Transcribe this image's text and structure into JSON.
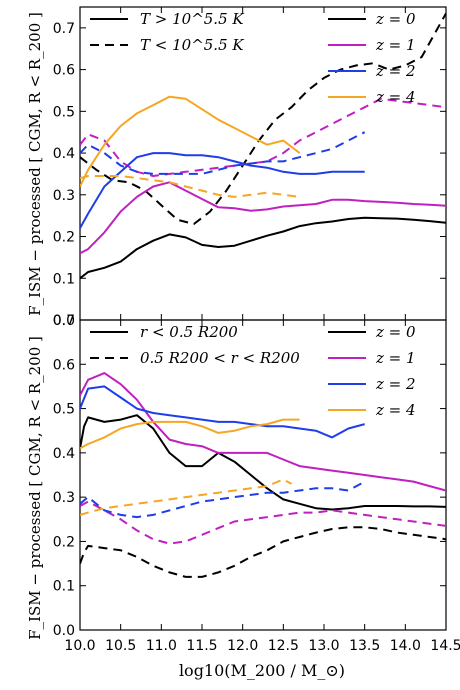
{
  "figure": {
    "ylabel": "F_ISM − processed [ CGM, R < R_200 ]",
    "xlabel": "log10(M_200 / M_⊙)"
  },
  "chart_data": [
    {
      "type": "line",
      "panel": "top",
      "xlim": [
        10.0,
        14.5
      ],
      "ylim": [
        0.0,
        0.75
      ],
      "xticks": [
        "10.0",
        "10.5",
        "11.0",
        "11.5",
        "12.0",
        "12.5",
        "13.0",
        "13.5",
        "14.0",
        "14.5"
      ],
      "yticks": [
        "0.0",
        "0.1",
        "0.2",
        "0.3",
        "0.4",
        "0.5",
        "0.6",
        "0.7"
      ],
      "style_legend": [
        {
          "label": "T > 10^5.5 K",
          "dash": "solid"
        },
        {
          "label": "T < 10^5.5 K",
          "dash": "dashed"
        }
      ],
      "color_legend": [
        {
          "label": "z = 0",
          "color": "#000000"
        },
        {
          "label": "z = 1",
          "color": "#c020c0"
        },
        {
          "label": "z = 2",
          "color": "#1f3de8"
        },
        {
          "label": "z = 4",
          "color": "#f5a623"
        }
      ],
      "series": [
        {
          "z": "z = 0",
          "style": "solid",
          "color": "#000000",
          "x": [
            10.0,
            10.1,
            10.3,
            10.5,
            10.7,
            10.9,
            11.1,
            11.3,
            11.5,
            11.7,
            11.9,
            12.1,
            12.3,
            12.5,
            12.7,
            12.9,
            13.1,
            13.3,
            13.5,
            13.7,
            13.9,
            14.1,
            14.3,
            14.5
          ],
          "y": [
            0.1,
            0.115,
            0.125,
            0.14,
            0.17,
            0.19,
            0.205,
            0.198,
            0.18,
            0.175,
            0.178,
            0.19,
            0.202,
            0.212,
            0.225,
            0.232,
            0.236,
            0.242,
            0.245,
            0.244,
            0.243,
            0.24,
            0.237,
            0.233
          ]
        },
        {
          "z": "z = 0",
          "style": "dashed",
          "color": "#000000",
          "x": [
            10.0,
            10.2,
            10.4,
            10.6,
            10.8,
            11.0,
            11.2,
            11.4,
            11.6,
            11.8,
            12.0,
            12.2,
            12.4,
            12.6,
            12.8,
            13.0,
            13.2,
            13.4,
            13.6,
            13.8,
            14.0,
            14.2,
            14.4,
            14.5
          ],
          "y": [
            0.39,
            0.36,
            0.335,
            0.33,
            0.31,
            0.275,
            0.24,
            0.23,
            0.26,
            0.31,
            0.37,
            0.43,
            0.48,
            0.51,
            0.55,
            0.58,
            0.6,
            0.61,
            0.615,
            0.6,
            0.61,
            0.63,
            0.7,
            0.735
          ]
        },
        {
          "z": "z = 1",
          "style": "solid",
          "color": "#c020c0",
          "x": [
            10.0,
            10.1,
            10.3,
            10.5,
            10.7,
            10.9,
            11.1,
            11.3,
            11.5,
            11.7,
            11.9,
            12.1,
            12.3,
            12.5,
            12.7,
            12.9,
            13.1,
            13.3,
            13.5,
            13.7,
            13.9,
            14.1,
            14.3,
            14.5
          ],
          "y": [
            0.16,
            0.17,
            0.21,
            0.26,
            0.295,
            0.32,
            0.33,
            0.31,
            0.29,
            0.27,
            0.268,
            0.262,
            0.265,
            0.272,
            0.275,
            0.278,
            0.288,
            0.288,
            0.285,
            0.283,
            0.281,
            0.278,
            0.276,
            0.274
          ]
        },
        {
          "z": "z = 1",
          "style": "dashed",
          "color": "#c020c0",
          "x": [
            10.0,
            10.1,
            10.3,
            10.5,
            10.7,
            10.9,
            11.1,
            11.3,
            11.5,
            11.7,
            11.9,
            12.1,
            12.3,
            12.5,
            12.7,
            12.9,
            13.1,
            13.3,
            13.5,
            13.7,
            13.9,
            14.1,
            14.3,
            14.5
          ],
          "y": [
            0.42,
            0.445,
            0.43,
            0.38,
            0.355,
            0.345,
            0.35,
            0.355,
            0.36,
            0.365,
            0.37,
            0.375,
            0.38,
            0.4,
            0.43,
            0.45,
            0.47,
            0.49,
            0.51,
            0.53,
            0.525,
            0.52,
            0.515,
            0.51
          ]
        },
        {
          "z": "z = 2",
          "style": "solid",
          "color": "#1f3de8",
          "x": [
            10.0,
            10.1,
            10.3,
            10.5,
            10.7,
            10.9,
            11.1,
            11.3,
            11.5,
            11.7,
            11.9,
            12.1,
            12.3,
            12.5,
            12.7,
            12.9,
            13.1,
            13.3,
            13.5
          ],
          "y": [
            0.22,
            0.255,
            0.32,
            0.355,
            0.39,
            0.4,
            0.4,
            0.395,
            0.395,
            0.39,
            0.38,
            0.37,
            0.365,
            0.355,
            0.35,
            0.35,
            0.355,
            0.355,
            0.355
          ]
        },
        {
          "z": "z = 2",
          "style": "dashed",
          "color": "#1f3de8",
          "x": [
            10.0,
            10.1,
            10.3,
            10.5,
            10.7,
            10.9,
            11.1,
            11.3,
            11.5,
            11.7,
            11.9,
            12.1,
            12.3,
            12.5,
            12.7,
            12.9,
            13.1,
            13.3,
            13.5
          ],
          "y": [
            0.4,
            0.42,
            0.4,
            0.37,
            0.355,
            0.35,
            0.35,
            0.35,
            0.35,
            0.36,
            0.37,
            0.375,
            0.38,
            0.38,
            0.39,
            0.4,
            0.41,
            0.43,
            0.45
          ]
        },
        {
          "z": "z = 4",
          "style": "solid",
          "color": "#f5a623",
          "x": [
            10.0,
            10.1,
            10.3,
            10.5,
            10.7,
            10.9,
            11.1,
            11.3,
            11.5,
            11.7,
            11.9,
            12.1,
            12.3,
            12.5,
            12.7
          ],
          "y": [
            0.32,
            0.36,
            0.42,
            0.465,
            0.495,
            0.515,
            0.535,
            0.53,
            0.505,
            0.48,
            0.46,
            0.44,
            0.42,
            0.43,
            0.4
          ]
        },
        {
          "z": "z = 4",
          "style": "dashed",
          "color": "#f5a623",
          "x": [
            10.0,
            10.1,
            10.3,
            10.5,
            10.7,
            10.9,
            11.1,
            11.3,
            11.5,
            11.7,
            11.9,
            12.1,
            12.3,
            12.5,
            12.7
          ],
          "y": [
            0.34,
            0.345,
            0.345,
            0.345,
            0.34,
            0.335,
            0.33,
            0.32,
            0.31,
            0.3,
            0.295,
            0.3,
            0.305,
            0.3,
            0.295
          ]
        }
      ]
    },
    {
      "type": "line",
      "panel": "bottom",
      "xlim": [
        10.0,
        14.5
      ],
      "ylim": [
        0.0,
        0.7
      ],
      "xticks": [
        "10.0",
        "10.5",
        "11.0",
        "11.5",
        "12.0",
        "12.5",
        "13.0",
        "13.5",
        "14.0",
        "14.5"
      ],
      "yticks": [
        "0.0",
        "0.1",
        "0.2",
        "0.3",
        "0.4",
        "0.5",
        "0.6",
        "0.7"
      ],
      "style_legend": [
        {
          "label": "r < 0.5 R200",
          "dash": "solid"
        },
        {
          "label": "0.5 R200 < r < R200",
          "dash": "dashed"
        }
      ],
      "color_legend": [
        {
          "label": "z = 0",
          "color": "#000000"
        },
        {
          "label": "z = 1",
          "color": "#c020c0"
        },
        {
          "label": "z = 2",
          "color": "#1f3de8"
        },
        {
          "label": "z = 4",
          "color": "#f5a623"
        }
      ],
      "series": [
        {
          "z": "z = 0",
          "style": "solid",
          "color": "#000000",
          "x": [
            10.0,
            10.05,
            10.1,
            10.3,
            10.5,
            10.7,
            10.9,
            11.1,
            11.3,
            11.5,
            11.7,
            11.9,
            12.1,
            12.3,
            12.5,
            12.7,
            12.9,
            13.1,
            13.3,
            13.5,
            13.7,
            13.9,
            14.1,
            14.3,
            14.5
          ],
          "y": [
            0.41,
            0.46,
            0.48,
            0.47,
            0.475,
            0.485,
            0.455,
            0.4,
            0.37,
            0.37,
            0.4,
            0.38,
            0.35,
            0.32,
            0.295,
            0.285,
            0.275,
            0.272,
            0.275,
            0.28,
            0.28,
            0.28,
            0.279,
            0.279,
            0.278
          ]
        },
        {
          "z": "z = 0",
          "style": "dashed",
          "color": "#000000",
          "x": [
            10.0,
            10.05,
            10.1,
            10.3,
            10.5,
            10.7,
            10.9,
            11.1,
            11.3,
            11.5,
            11.7,
            11.9,
            12.1,
            12.3,
            12.5,
            12.7,
            12.9,
            13.1,
            13.3,
            13.5,
            13.7,
            13.9,
            14.1,
            14.3,
            14.5
          ],
          "y": [
            0.15,
            0.175,
            0.19,
            0.185,
            0.18,
            0.165,
            0.145,
            0.13,
            0.12,
            0.12,
            0.13,
            0.145,
            0.165,
            0.18,
            0.2,
            0.21,
            0.22,
            0.228,
            0.232,
            0.232,
            0.228,
            0.22,
            0.215,
            0.21,
            0.205
          ]
        },
        {
          "z": "z = 1",
          "style": "solid",
          "color": "#c020c0",
          "x": [
            10.0,
            10.1,
            10.3,
            10.5,
            10.7,
            10.9,
            11.1,
            11.3,
            11.5,
            11.7,
            11.9,
            12.1,
            12.3,
            12.5,
            12.7,
            12.9,
            13.1,
            13.3,
            13.5,
            13.7,
            13.9,
            14.1,
            14.3,
            14.5
          ],
          "y": [
            0.53,
            0.565,
            0.58,
            0.555,
            0.52,
            0.47,
            0.43,
            0.42,
            0.415,
            0.4,
            0.4,
            0.4,
            0.4,
            0.385,
            0.37,
            0.365,
            0.36,
            0.355,
            0.35,
            0.345,
            0.34,
            0.335,
            0.325,
            0.315
          ]
        },
        {
          "z": "z = 1",
          "style": "dashed",
          "color": "#c020c0",
          "x": [
            10.0,
            10.1,
            10.3,
            10.5,
            10.7,
            10.9,
            11.1,
            11.3,
            11.5,
            11.7,
            11.9,
            12.1,
            12.3,
            12.5,
            12.7,
            12.9,
            13.1,
            13.3,
            13.5,
            13.7,
            13.9,
            14.1,
            14.3,
            14.5
          ],
          "y": [
            0.28,
            0.29,
            0.27,
            0.25,
            0.225,
            0.205,
            0.195,
            0.2,
            0.215,
            0.23,
            0.245,
            0.25,
            0.255,
            0.26,
            0.265,
            0.265,
            0.27,
            0.265,
            0.26,
            0.255,
            0.25,
            0.245,
            0.24,
            0.235
          ]
        },
        {
          "z": "z = 2",
          "style": "solid",
          "color": "#1f3de8",
          "x": [
            10.0,
            10.1,
            10.3,
            10.5,
            10.7,
            10.9,
            11.1,
            11.3,
            11.5,
            11.7,
            11.9,
            12.1,
            12.3,
            12.5,
            12.7,
            12.9,
            13.1,
            13.3,
            13.5
          ],
          "y": [
            0.5,
            0.545,
            0.55,
            0.525,
            0.5,
            0.49,
            0.485,
            0.48,
            0.475,
            0.47,
            0.47,
            0.465,
            0.46,
            0.46,
            0.455,
            0.45,
            0.435,
            0.455,
            0.465
          ]
        },
        {
          "z": "z = 2",
          "style": "dashed",
          "color": "#1f3de8",
          "x": [
            10.0,
            10.1,
            10.3,
            10.5,
            10.7,
            10.9,
            11.1,
            11.3,
            11.5,
            11.7,
            11.9,
            12.1,
            12.3,
            12.5,
            12.7,
            12.9,
            13.1,
            13.3,
            13.5
          ],
          "y": [
            0.285,
            0.3,
            0.27,
            0.26,
            0.255,
            0.26,
            0.27,
            0.28,
            0.29,
            0.295,
            0.3,
            0.305,
            0.31,
            0.31,
            0.315,
            0.32,
            0.32,
            0.315,
            0.335
          ]
        },
        {
          "z": "z = 4",
          "style": "solid",
          "color": "#f5a623",
          "x": [
            10.0,
            10.1,
            10.3,
            10.5,
            10.7,
            10.9,
            11.1,
            11.3,
            11.5,
            11.7,
            11.9,
            12.1,
            12.3,
            12.5,
            12.7
          ],
          "y": [
            0.41,
            0.42,
            0.435,
            0.455,
            0.465,
            0.47,
            0.47,
            0.47,
            0.46,
            0.445,
            0.45,
            0.46,
            0.465,
            0.475,
            0.475
          ]
        },
        {
          "z": "z = 4",
          "style": "dashed",
          "color": "#f5a623",
          "x": [
            10.0,
            10.1,
            10.3,
            10.5,
            10.7,
            10.9,
            11.1,
            11.3,
            11.5,
            11.7,
            11.9,
            12.1,
            12.3,
            12.5,
            12.6
          ],
          "y": [
            0.26,
            0.265,
            0.275,
            0.28,
            0.285,
            0.29,
            0.295,
            0.3,
            0.305,
            0.31,
            0.315,
            0.32,
            0.325,
            0.34,
            0.33
          ]
        }
      ]
    }
  ]
}
